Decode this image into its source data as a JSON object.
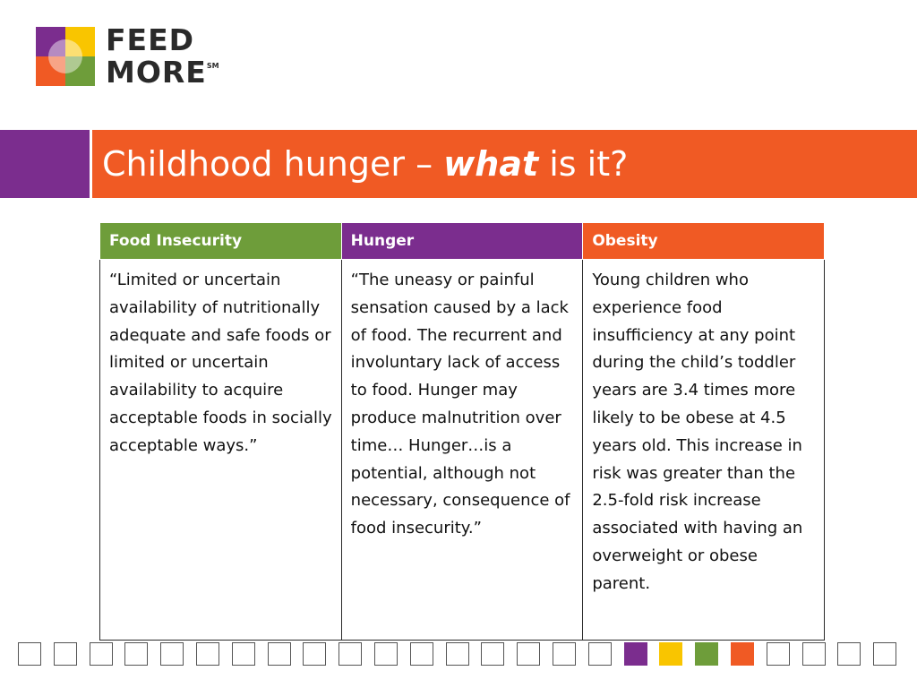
{
  "logo": {
    "line1": "FEED",
    "line2": "MORE",
    "mark": "SM",
    "colors": [
      "#7b2d8e",
      "#f9c500",
      "#f05a24",
      "#6e9d3a"
    ]
  },
  "title": {
    "prefix": "Childhood hunger – ",
    "emphasis": "what",
    "suffix": " is it?"
  },
  "table": {
    "headers": [
      "Food Insecurity",
      "Hunger",
      "Obesity"
    ],
    "header_colors": [
      "#6e9d3a",
      "#7b2d8e",
      "#f05a24"
    ],
    "cells": [
      "“Limited or uncertain availability of nutritionally adequate and safe foods or limited or uncertain availability to acquire acceptable foods in socially acceptable ways.”",
      "“The uneasy or painful sensation caused by a lack of food. The recurrent and involuntary lack of access to food. Hunger may produce malnutrition over time… Hunger…is a potential, although not necessary, consequence of food insecurity.”",
      "Young children who experience food insufficiency at any point during the child’s toddler years are 3.4 times more likely to be obese at 4.5 years old. This increase in risk was greater than the 2.5-fold risk increase associated with having an overweight or obese parent."
    ]
  },
  "footer_squares": {
    "count": 25,
    "filled": [
      {
        "index": 17,
        "color": "#7b2d8e"
      },
      {
        "index": 18,
        "color": "#f9c500"
      },
      {
        "index": 19,
        "color": "#6e9d3a"
      },
      {
        "index": 20,
        "color": "#f05a24"
      }
    ]
  }
}
